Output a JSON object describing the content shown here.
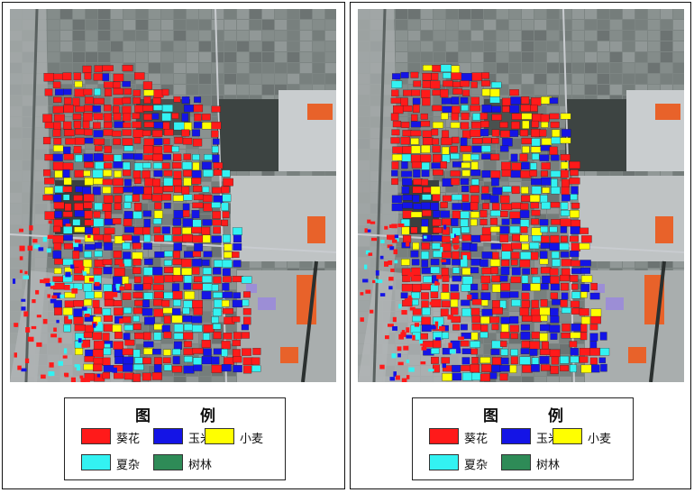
{
  "legend": {
    "title_part1": "图",
    "title_part2": "例",
    "items": [
      {
        "label": "葵花",
        "color": "#ff1a1a"
      },
      {
        "label": "玉米",
        "color": "#1414e6"
      },
      {
        "label": "小麦",
        "color": "#ffff00"
      },
      {
        "label": "夏杂",
        "color": "#33f2f2"
      },
      {
        "label": "树林",
        "color": "#2e8b57"
      }
    ]
  },
  "map_colors": {
    "background": "#7d8583",
    "built_up": "#b9bdbe",
    "dark_field": "#3d4442",
    "road": "#c9ccd0",
    "orange_roof": "#e8622a",
    "purple_roof": "#9c8ed6"
  },
  "panels": [
    {
      "name": "left",
      "class_share": {
        "sunflower": 0.5,
        "maize": 0.25,
        "wheat": 0.07,
        "summer_misc": 0.18
      }
    },
    {
      "name": "right",
      "class_share": {
        "sunflower": 0.44,
        "maize": 0.28,
        "wheat": 0.12,
        "summer_misc": 0.16
      }
    }
  ]
}
